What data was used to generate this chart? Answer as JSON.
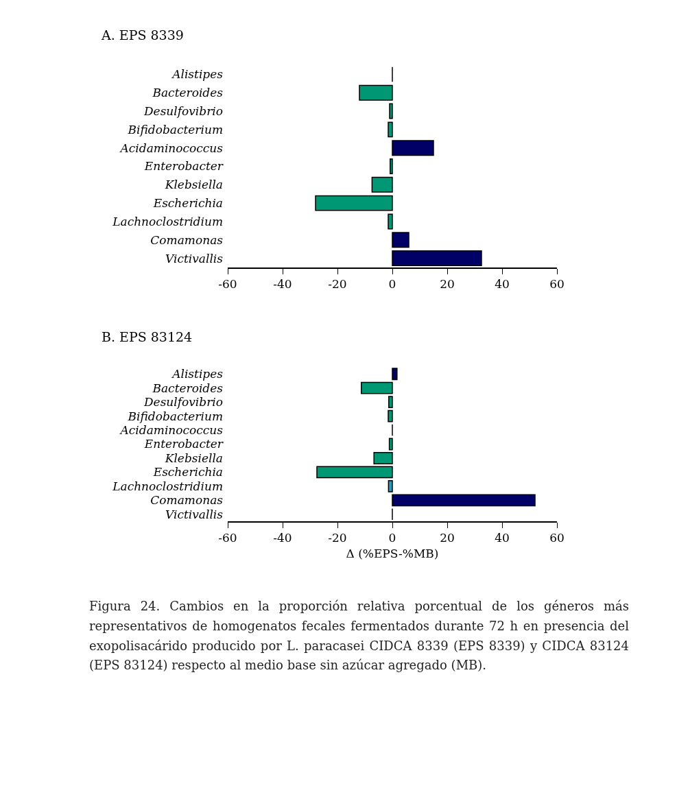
{
  "chart_data": [
    {
      "type": "bar",
      "title": "A. EPS 8339",
      "orientation": "horizontal",
      "categories": [
        "Alistipes",
        "Bacteroides",
        "Desulfovibrio",
        "Bifidobacterium",
        "Acidaminococcus",
        "Enterobacter",
        "Klebsiella",
        "Escherichia",
        "Lachnoclostridium",
        "Comamonas",
        "Victivallis"
      ],
      "values": [
        0,
        -12,
        -1,
        -1.5,
        15,
        -0.8,
        -7.4,
        -28,
        -1.5,
        6,
        32.5
      ],
      "colors": [
        "#000000",
        "#009874",
        "#009874",
        "#009874",
        "#000066",
        "#009874",
        "#009874",
        "#009874",
        "#009874",
        "#000066",
        "#000066"
      ],
      "xlim": [
        -60,
        60
      ],
      "xticks": [
        -60,
        -40,
        -20,
        0,
        20,
        40,
        60
      ],
      "grid": false,
      "legend": false
    },
    {
      "type": "bar",
      "title": "B. EPS 83124",
      "orientation": "horizontal",
      "xlabel": "Δ (%EPS-%MB)",
      "categories": [
        "Alistipes",
        "Bacteroides",
        "Desulfovibrio",
        "Bifidobacterium",
        "Acidaminococcus",
        "Enterobacter",
        "Klebsiella",
        "Escherichia",
        "Lachnoclostridium",
        "Comamonas",
        "Victivallis"
      ],
      "values": [
        1.7,
        -11.3,
        -1.3,
        -1.5,
        0,
        -1.1,
        -6.7,
        -27.5,
        -1.4,
        52,
        0
      ],
      "colors": [
        "#000066",
        "#009874",
        "#009874",
        "#009874",
        "#000000",
        "#009874",
        "#009874",
        "#009874",
        "#2a9bbd",
        "#000066",
        "#000000"
      ],
      "xlim": [
        -60,
        60
      ],
      "xticks": [
        -60,
        -40,
        -20,
        0,
        20,
        40,
        60
      ],
      "grid": false,
      "legend": false,
      "annotations": [
        "Figura 24. Cambios en la proporción relativa porcentual de los géneros más representativos de homogenatos fecales fermentados durante 72 h en presencia del exopolisacárido producido por L. paracasei CIDCA 8339 (EPS 8339) y CIDCA 83124 (EPS 83124) respecto al medio base sin azúcar agregado (MB)."
      ]
    }
  ]
}
